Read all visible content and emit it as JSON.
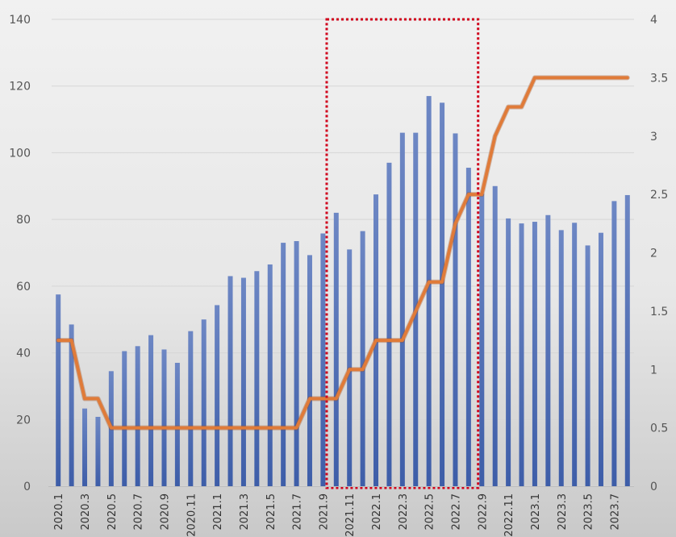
{
  "chart_data": {
    "type": "bar",
    "title": "",
    "xlabel": "",
    "ylabel": "",
    "ylim": [
      0,
      140
    ],
    "y2lim": [
      0,
      4
    ],
    "yticks": [
      0,
      20,
      40,
      60,
      80,
      100,
      120,
      140
    ],
    "y2ticks": [
      "0",
      "0.5",
      "1",
      "1.5",
      "2",
      "2.5",
      "3",
      "3.5",
      "4"
    ],
    "grid": true,
    "legend": "none",
    "categories": [
      "2020.1",
      "2020.2",
      "2020.3",
      "2020.4",
      "2020.5",
      "2020.6",
      "2020.7",
      "2020.8",
      "2020.9",
      "2020.10",
      "2020.11",
      "2020.12",
      "2021.1",
      "2021.2",
      "2021.3",
      "2021.4",
      "2021.5",
      "2021.6",
      "2021.7",
      "2021.8",
      "2021.9",
      "2021.10",
      "2021.11",
      "2021.12",
      "2022.1",
      "2022.2",
      "2022.3",
      "2022.4",
      "2022.5",
      "2022.6",
      "2022.7",
      "2022.8",
      "2022.9",
      "2022.10",
      "2022.11",
      "2022.12",
      "2023.1",
      "2023.2",
      "2023.3",
      "2023.4",
      "2023.5",
      "2023.6",
      "2023.7",
      "2023.8"
    ],
    "x_tick_labels": [
      "2020.1",
      "2020.3",
      "2020.5",
      "2020.7",
      "2020.9",
      "2020.11",
      "2021.1",
      "2021.3",
      "2021.5",
      "2021.7",
      "2021.9",
      "2021.11",
      "2022.1",
      "2022.3",
      "2022.5",
      "2022.7",
      "2022.9",
      "2022.11",
      "2023.1",
      "2023.3",
      "2023.5",
      "2023.7"
    ],
    "series": [
      {
        "type": "bar",
        "axis": "left",
        "color": "#3d5da8",
        "values": [
          57.5,
          48.5,
          23.3,
          20.8,
          34.5,
          40.5,
          42,
          45.3,
          41,
          37,
          46.5,
          50,
          54.3,
          63,
          62.5,
          64.5,
          66.5,
          73,
          73.5,
          69.3,
          75.8,
          82,
          71,
          76.5,
          87.5,
          97,
          106,
          106,
          117,
          115,
          105.8,
          95.5,
          87.7,
          90,
          80.3,
          78.8,
          79.3,
          81.3,
          76.8,
          79,
          72.2,
          76,
          85.5,
          87.3
        ]
      },
      {
        "type": "line",
        "axis": "right",
        "color": "#e07b39",
        "values": [
          1.25,
          1.25,
          0.75,
          0.75,
          0.5,
          0.5,
          0.5,
          0.5,
          0.5,
          0.5,
          0.5,
          0.5,
          0.5,
          0.5,
          0.5,
          0.5,
          0.5,
          0.5,
          0.5,
          0.75,
          0.75,
          0.75,
          1.0,
          1.0,
          1.25,
          1.25,
          1.25,
          1.5,
          1.75,
          1.75,
          2.25,
          2.5,
          2.5,
          3.0,
          3.25,
          3.25,
          3.5,
          3.5,
          3.5,
          3.5,
          3.5,
          3.5,
          3.5,
          3.5
        ]
      }
    ],
    "highlight": {
      "from": "2021.10",
      "to": "2022.8",
      "color": "#d0021b",
      "style": "dotted"
    }
  }
}
